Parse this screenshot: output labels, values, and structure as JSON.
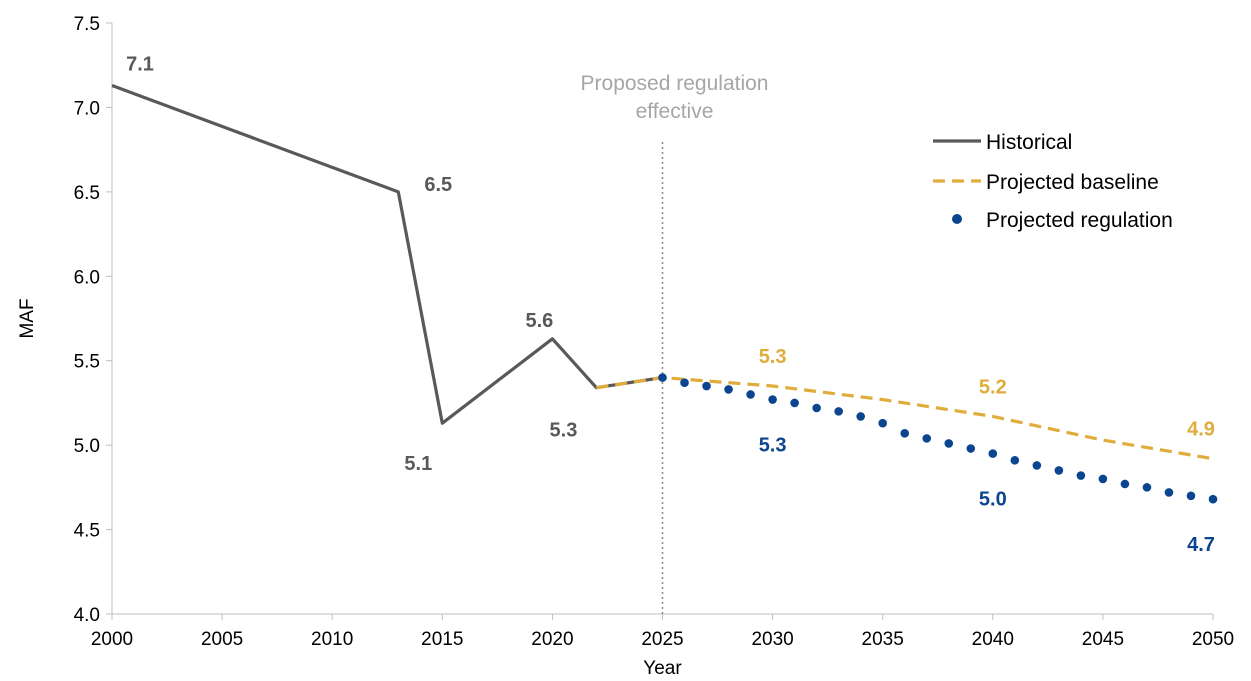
{
  "chart_data": {
    "type": "line",
    "xlabel": "Year",
    "ylabel": "MAF",
    "xlim": [
      2000,
      2050
    ],
    "ylim": [
      4.0,
      7.5
    ],
    "x_ticks": [
      "2000",
      "2005",
      "2010",
      "2015",
      "2020",
      "2025",
      "2030",
      "2035",
      "2040",
      "2045",
      "2050"
    ],
    "y_ticks": [
      "4.0",
      "4.5",
      "5.0",
      "5.5",
      "6.0",
      "6.5",
      "7.0",
      "7.5"
    ],
    "grid": false,
    "legend_position": "top-right",
    "annotation": {
      "x": 2025,
      "lines": [
        "Proposed regulation",
        "effective"
      ]
    },
    "series": [
      {
        "name": "Historical",
        "style": "solid",
        "color": "#595959",
        "points": [
          [
            2000,
            7.13
          ],
          [
            2013,
            6.5
          ],
          [
            2015,
            5.13
          ],
          [
            2020,
            5.63
          ],
          [
            2022,
            5.34
          ],
          [
            2025,
            5.4
          ]
        ]
      },
      {
        "name": "Projected baseline",
        "style": "dashed",
        "color": "#e0ac3c",
        "points": [
          [
            2022,
            5.34
          ],
          [
            2025,
            5.4
          ],
          [
            2030,
            5.35
          ],
          [
            2035,
            5.27
          ],
          [
            2040,
            5.17
          ],
          [
            2045,
            5.03
          ],
          [
            2050,
            4.92
          ]
        ]
      },
      {
        "name": "Projected regulation",
        "style": "dotted",
        "color": "#0b4590",
        "points": [
          [
            2025,
            5.4
          ],
          [
            2026,
            5.37
          ],
          [
            2027,
            5.35
          ],
          [
            2028,
            5.33
          ],
          [
            2029,
            5.3
          ],
          [
            2030,
            5.27
          ],
          [
            2031,
            5.25
          ],
          [
            2032,
            5.22
          ],
          [
            2033,
            5.2
          ],
          [
            2034,
            5.17
          ],
          [
            2035,
            5.13
          ],
          [
            2036,
            5.07
          ],
          [
            2037,
            5.04
          ],
          [
            2038,
            5.01
          ],
          [
            2039,
            4.98
          ],
          [
            2040,
            4.95
          ],
          [
            2041,
            4.91
          ],
          [
            2042,
            4.88
          ],
          [
            2043,
            4.85
          ],
          [
            2044,
            4.82
          ],
          [
            2045,
            4.8
          ],
          [
            2046,
            4.77
          ],
          [
            2047,
            4.75
          ],
          [
            2048,
            4.72
          ],
          [
            2049,
            4.7
          ],
          [
            2050,
            4.68
          ]
        ]
      }
    ],
    "data_labels": [
      {
        "text": "7.1",
        "x": 2000,
        "y": 7.13,
        "series": 0,
        "pos": "above-right"
      },
      {
        "text": "6.5",
        "x": 2013,
        "y": 6.5,
        "series": 0,
        "pos": "right"
      },
      {
        "text": "5.1",
        "x": 2015,
        "y": 5.13,
        "series": 0,
        "pos": "below-left"
      },
      {
        "text": "5.6",
        "x": 2020,
        "y": 5.63,
        "series": 0,
        "pos": "above-left"
      },
      {
        "text": "5.3",
        "x": 2022,
        "y": 5.34,
        "series": 0,
        "pos": "below-left"
      },
      {
        "text": "5.3",
        "x": 2030,
        "y": 5.35,
        "series": 1,
        "pos": "above"
      },
      {
        "text": "5.2",
        "x": 2040,
        "y": 5.17,
        "series": 1,
        "pos": "above"
      },
      {
        "text": "4.9",
        "x": 2050,
        "y": 4.92,
        "series": 1,
        "pos": "above"
      },
      {
        "text": "5.3",
        "x": 2030,
        "y": 5.27,
        "series": 2,
        "pos": "below"
      },
      {
        "text": "5.0",
        "x": 2040,
        "y": 4.95,
        "series": 2,
        "pos": "below"
      },
      {
        "text": "4.7",
        "x": 2050,
        "y": 4.68,
        "series": 2,
        "pos": "below"
      }
    ]
  }
}
